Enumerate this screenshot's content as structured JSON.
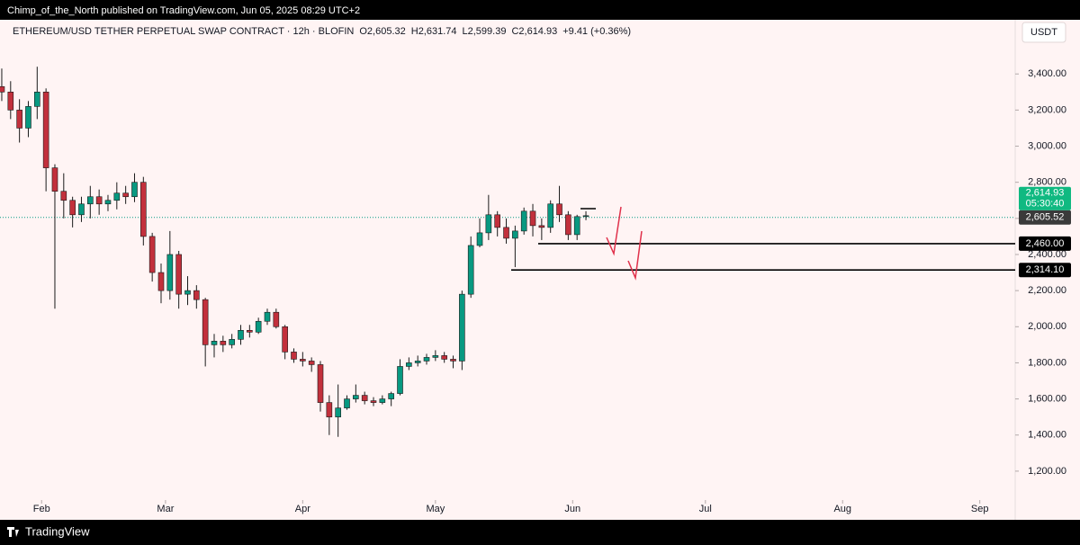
{
  "publisher_line": "Chimp_of_the_North published on TradingView.com, Jun 05, 2025 08:29 UTC+2",
  "footer_brand": "TradingView",
  "chart_data": {
    "type": "candlestick",
    "title": "ETHEREUM/USD TETHER PERPETUAL SWAP CONTRACT · 12h · BLOFIN",
    "ohlc_legend": [
      "O2,605.32",
      "H2,631.74",
      "L2,599.39",
      "C2,614.93",
      "+9.41 (+0.36%)"
    ],
    "currency": "USDT",
    "categories": [
      null,
      null,
      null,
      null,
      null,
      null,
      null,
      null,
      null,
      null,
      null,
      null,
      null,
      null,
      null,
      null,
      null,
      null,
      null,
      null,
      null,
      null,
      null,
      null,
      null,
      null,
      null,
      null,
      null,
      null,
      null,
      null,
      null,
      null,
      null,
      null,
      null,
      null,
      null,
      null,
      null,
      null,
      null,
      null,
      null,
      null,
      null,
      null,
      null,
      null,
      null,
      null,
      null,
      null,
      null,
      null,
      null,
      null,
      null,
      null,
      null,
      null,
      null,
      null,
      null,
      null,
      null
    ],
    "open": [
      3330,
      3300,
      3200,
      3100,
      3220,
      3300,
      2880,
      2750,
      2700,
      2620,
      2680,
      2720,
      2680,
      2700,
      2740,
      2720,
      2800,
      2500,
      2300,
      2200,
      2400,
      2180,
      2200,
      2150,
      1900,
      1920,
      1900,
      1930,
      1980,
      1970,
      2030,
      2080,
      2000,
      1860,
      1820,
      1810,
      1790,
      1580,
      1500,
      1550,
      1600,
      1620,
      1590,
      1580,
      1600,
      1630,
      1780,
      1800,
      1810,
      1830,
      1840,
      1820,
      1810,
      2180,
      2450,
      2520,
      2620,
      2550,
      2490,
      2530,
      2640,
      2560,
      2550,
      2680,
      2620,
      2510,
      2610
    ],
    "high": [
      3430,
      3360,
      3260,
      3250,
      3440,
      3320,
      2900,
      2850,
      2720,
      2720,
      2780,
      2760,
      2730,
      2800,
      2780,
      2850,
      2830,
      2520,
      2350,
      2530,
      2420,
      2280,
      2230,
      2160,
      1960,
      1950,
      1960,
      2010,
      2010,
      2050,
      2100,
      2100,
      2010,
      1880,
      1860,
      1830,
      1810,
      1620,
      1680,
      1620,
      1680,
      1640,
      1610,
      1620,
      1640,
      1820,
      1830,
      1840,
      1850,
      1870,
      1860,
      1840,
      2200,
      2500,
      2600,
      2730,
      2640,
      2600,
      2560,
      2660,
      2680,
      2600,
      2700,
      2780,
      2640,
      2620,
      2640
    ],
    "low": [
      3250,
      3150,
      3020,
      3050,
      3150,
      2750,
      2100,
      2600,
      2550,
      2580,
      2600,
      2620,
      2640,
      2650,
      2680,
      2690,
      2450,
      2250,
      2130,
      2150,
      2100,
      2120,
      2100,
      1780,
      1830,
      1860,
      1880,
      1900,
      1940,
      1960,
      2010,
      1990,
      1820,
      1800,
      1780,
      1750,
      1530,
      1400,
      1390,
      1540,
      1580,
      1570,
      1560,
      1570,
      1560,
      1620,
      1760,
      1780,
      1790,
      1810,
      1800,
      1770,
      1760,
      2160,
      2440,
      2480,
      2500,
      2460,
      2330,
      2510,
      2500,
      2480,
      2520,
      2580,
      2480,
      2480,
      2590
    ],
    "close": [
      3300,
      3200,
      3100,
      3220,
      3300,
      2880,
      2750,
      2700,
      2620,
      2680,
      2720,
      2680,
      2700,
      2740,
      2720,
      2800,
      2500,
      2300,
      2200,
      2400,
      2180,
      2200,
      2150,
      1900,
      1920,
      1900,
      1930,
      1980,
      1970,
      2030,
      2080,
      2000,
      1860,
      1820,
      1810,
      1790,
      1580,
      1500,
      1550,
      1600,
      1620,
      1590,
      1580,
      1600,
      1630,
      1780,
      1800,
      1810,
      1830,
      1840,
      1820,
      1810,
      2180,
      2450,
      2520,
      2620,
      2550,
      2490,
      2530,
      2640,
      2560,
      2550,
      2680,
      2620,
      2510,
      2610,
      2615
    ],
    "up_color": "#089981",
    "down_color": "#c2303c",
    "xlim": [
      -0.2,
      114.5
    ],
    "xticks": [
      {
        "value": 4.5,
        "label": "Feb"
      },
      {
        "value": 18.5,
        "label": "Mar"
      },
      {
        "value": 34,
        "label": "Apr"
      },
      {
        "value": 49,
        "label": "May"
      },
      {
        "value": 64.5,
        "label": "Jun"
      },
      {
        "value": 79.5,
        "label": "Jul"
      },
      {
        "value": 95,
        "label": "Aug"
      },
      {
        "value": 110.5,
        "label": "Sep"
      }
    ],
    "ylim": [
      1050,
      3700
    ],
    "yticks": [
      {
        "value": 1200,
        "label": "1,200.00"
      },
      {
        "value": 1400,
        "label": "1,400.00"
      },
      {
        "value": 1600,
        "label": "1,600.00"
      },
      {
        "value": 1800,
        "label": "1,800.00"
      },
      {
        "value": 2000,
        "label": "2,000.00"
      },
      {
        "value": 2200,
        "label": "2,200.00"
      },
      {
        "value": 2400,
        "label": "2,400.00"
      },
      {
        "value": 2600,
        "label": "2,600.00"
      },
      {
        "value": 2800,
        "label": "2,800.00"
      },
      {
        "value": 3000,
        "label": "3,000.00"
      },
      {
        "value": 3200,
        "label": "3,200.00"
      },
      {
        "value": 3400,
        "label": "3,400.00"
      }
    ],
    "price_lines": [
      {
        "value": 2460,
        "label": "2,460.00"
      },
      {
        "value": 2314.1,
        "label": "2,314.10"
      }
    ],
    "last_price": {
      "value": 2614.93,
      "label": "2,614.93"
    },
    "countdown": "05:30:40",
    "reference_price": {
      "value": 2605.52,
      "label": "2,605.52"
    }
  }
}
